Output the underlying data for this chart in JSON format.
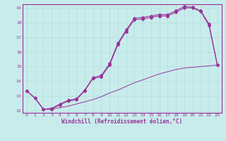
{
  "xlabel": "Windchill (Refroidissement éolien,°C)",
  "bg_color": "#c8ecec",
  "grid_color": "#b8dede",
  "line_color": "#993399",
  "xlim": [
    -0.5,
    23.5
  ],
  "ylim": [
    11.85,
    19.25
  ],
  "xticks": [
    0,
    1,
    2,
    3,
    4,
    5,
    6,
    7,
    8,
    9,
    10,
    11,
    12,
    13,
    14,
    15,
    16,
    17,
    18,
    19,
    20,
    21,
    22,
    23
  ],
  "yticks": [
    12,
    13,
    14,
    15,
    16,
    17,
    18,
    19
  ],
  "line1_x": [
    0,
    1,
    2,
    3,
    4,
    5,
    6,
    7,
    8,
    9,
    10,
    11,
    12,
    13,
    14,
    15,
    16,
    17,
    18,
    19,
    20,
    21,
    22,
    23
  ],
  "line1_y": [
    13.35,
    12.85,
    12.1,
    12.1,
    12.4,
    12.65,
    12.75,
    13.35,
    14.2,
    14.3,
    15.1,
    16.5,
    17.4,
    18.2,
    18.25,
    18.35,
    18.45,
    18.45,
    18.7,
    19.0,
    19.0,
    18.75,
    17.8,
    15.1
  ],
  "line2_x": [
    0,
    1,
    2,
    3,
    4,
    5,
    6,
    7,
    8,
    9,
    10,
    11,
    12,
    13,
    14,
    15,
    16,
    17,
    18,
    19,
    20,
    21,
    22,
    23
  ],
  "line2_y": [
    13.35,
    12.85,
    12.1,
    12.15,
    12.45,
    12.7,
    12.8,
    13.4,
    14.25,
    14.4,
    15.2,
    16.6,
    17.5,
    18.3,
    18.35,
    18.45,
    18.55,
    18.55,
    18.8,
    19.1,
    19.05,
    18.8,
    17.9,
    15.1
  ],
  "line3_x": [
    0,
    1,
    2,
    3,
    4,
    5,
    6,
    7,
    8,
    9,
    10,
    11,
    12,
    13,
    14,
    15,
    16,
    17,
    18,
    19,
    20,
    21,
    22,
    23
  ],
  "line3_y": [
    13.35,
    12.85,
    12.1,
    12.1,
    12.2,
    12.3,
    12.45,
    12.6,
    12.75,
    12.95,
    13.2,
    13.4,
    13.65,
    13.9,
    14.1,
    14.3,
    14.5,
    14.65,
    14.8,
    14.9,
    14.95,
    15.0,
    15.05,
    15.1
  ]
}
